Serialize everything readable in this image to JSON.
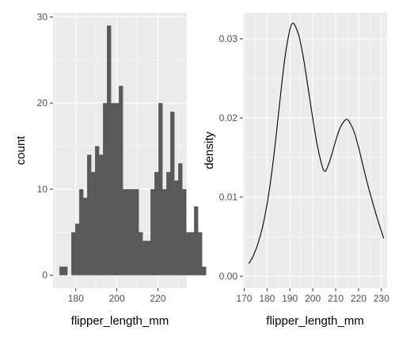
{
  "chart_data": [
    {
      "type": "bar",
      "subtype": "histogram",
      "xlabel": "flipper_length_mm",
      "ylabel": "count",
      "xlim": [
        168.9,
        234.1
      ],
      "ylim": [
        -1.5,
        30.5
      ],
      "xticks": [
        180,
        200,
        220
      ],
      "yticks": [
        0,
        10,
        20,
        30
      ],
      "bin_width": 1.93,
      "bin_start": 172,
      "counts": [
        1,
        1,
        0,
        5,
        6,
        10,
        9,
        14,
        12,
        15,
        14,
        20,
        29,
        20,
        20,
        22,
        10,
        10,
        10,
        10,
        5,
        4,
        4,
        10,
        12,
        20,
        10,
        12,
        19,
        11,
        13,
        10,
        5,
        5,
        8,
        5,
        1
      ],
      "bar_color": "#595959",
      "panel_background": "#ebebeb",
      "grid": true
    },
    {
      "type": "line",
      "subtype": "density",
      "xlabel": "flipper_length_mm",
      "ylabel": "density",
      "xlim": [
        169.5,
        232.5
      ],
      "ylim": [
        -0.0015,
        0.0333
      ],
      "xticks": [
        170,
        180,
        190,
        200,
        210,
        220,
        230
      ],
      "yticks": [
        0.0,
        0.01,
        0.02,
        0.03
      ],
      "ytick_labels": [
        "0.00",
        "0.01",
        "0.02",
        "0.03"
      ],
      "line_color": "#000000",
      "panel_background": "#ebebeb",
      "grid": true,
      "series": [
        {
          "x": [
            172,
            174,
            176,
            178,
            180,
            182,
            184,
            186,
            188,
            190,
            191,
            192,
            194,
            196,
            198,
            200,
            202,
            204,
            205,
            206,
            208,
            210,
            212,
            214,
            215,
            216,
            218,
            220,
            222,
            224,
            226,
            228,
            230,
            231
          ],
          "y": [
            0.0016,
            0.0026,
            0.0041,
            0.0062,
            0.0091,
            0.013,
            0.0178,
            0.0232,
            0.028,
            0.0312,
            0.0319,
            0.0318,
            0.0303,
            0.0274,
            0.0237,
            0.0199,
            0.0165,
            0.014,
            0.0133,
            0.0135,
            0.0151,
            0.0171,
            0.0188,
            0.0197,
            0.0198,
            0.0195,
            0.0183,
            0.0163,
            0.0139,
            0.0116,
            0.0095,
            0.0075,
            0.0057,
            0.0048
          ]
        }
      ]
    }
  ]
}
